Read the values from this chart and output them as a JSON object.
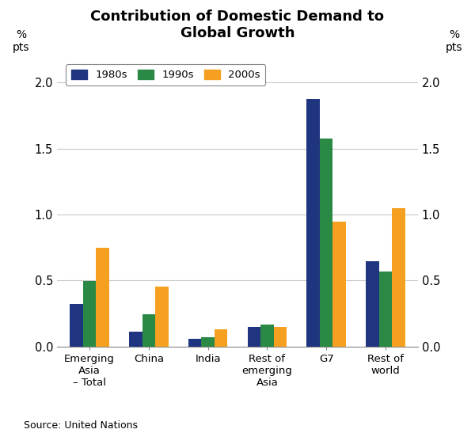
{
  "title": "Contribution of Domestic Demand to\nGlobal Growth",
  "categories": [
    "Emerging\nAsia\n– Total",
    "China",
    "India",
    "Rest of\nemerging\nAsia",
    "G7",
    "Rest of\nworld"
  ],
  "series": {
    "1980s": [
      0.32,
      0.11,
      0.055,
      0.145,
      1.875,
      0.645
    ],
    "1990s": [
      0.495,
      0.245,
      0.07,
      0.165,
      1.575,
      0.565
    ],
    "2000s": [
      0.745,
      0.455,
      0.13,
      0.145,
      0.945,
      1.05
    ]
  },
  "colors": {
    "1980s": "#1f3580",
    "1990s": "#2a8a45",
    "2000s": "#f5a020"
  },
  "ylim": [
    0,
    2.2
  ],
  "yticks": [
    0.0,
    0.5,
    1.0,
    1.5,
    2.0
  ],
  "ylabel": "% \npts",
  "source": "Source: United Nations",
  "legend_labels": [
    "1980s",
    "1990s",
    "2000s"
  ],
  "bar_width": 0.22,
  "grid_color": "#c8c8c8",
  "background_color": "#ffffff"
}
